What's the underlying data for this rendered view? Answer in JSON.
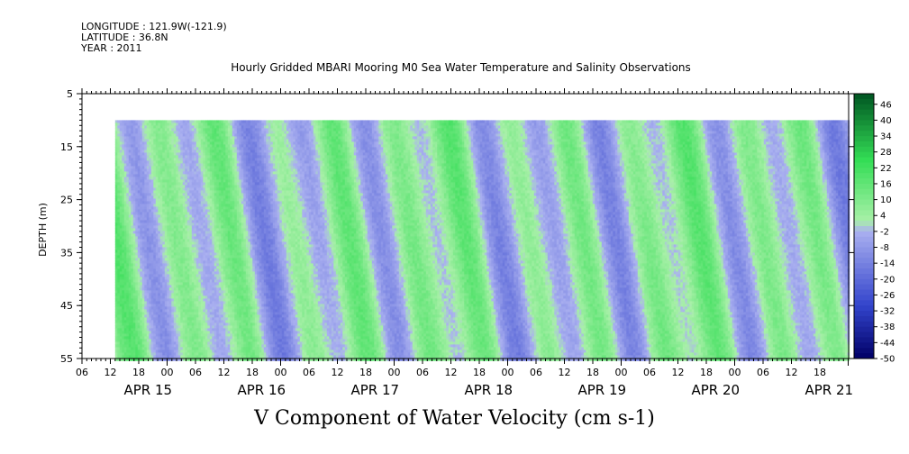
{
  "header": {
    "longitude": "LONGITUDE : 121.9W(-121.9)",
    "latitude": "LATITUDE : 36.8N",
    "year": "YEAR : 2011"
  },
  "chart_data": {
    "type": "heatmap",
    "title": "Hourly Gridded MBARI Mooring M0 Sea Water Temperature and Salinity Observations",
    "xlabel": "V Component of Water Velocity (cm s-1)",
    "ylabel": "DEPTH (m)",
    "y_ticks": [
      5,
      15,
      25,
      35,
      45,
      55
    ],
    "ylim": [
      5,
      55
    ],
    "y_reversed": true,
    "data_depth_range": [
      10,
      55
    ],
    "x_hour_ticks": [
      "06",
      "12",
      "18",
      "00",
      "06",
      "12",
      "18",
      "00",
      "06",
      "12",
      "18",
      "00",
      "06",
      "12",
      "18",
      "00",
      "06",
      "12",
      "18",
      "00",
      "06",
      "12",
      "18",
      "00",
      "06",
      "12",
      "18"
    ],
    "x_day_labels": [
      "APR 15",
      "APR 16",
      "APR 17",
      "APR 18",
      "APR 19",
      "APR 20",
      "APR 21"
    ],
    "x_start": "APR 15 06:00",
    "x_end": "APR 21 22:00",
    "data_x_start": "APR 15 13:00",
    "colorbar": {
      "levels": [
        "46",
        "40",
        "34",
        "28",
        "22",
        "16",
        "10",
        "4",
        "-2",
        "-8",
        "-14",
        "-20",
        "-26",
        "-32",
        "-38",
        "-44",
        "-50"
      ],
      "range": [
        -50,
        50
      ],
      "colors": {
        "negative_strong": "#000066",
        "negative_mid": "#3344cc",
        "negative_weak": "#aab0f0",
        "positive_weak": "#a8f0a8",
        "positive_mid": "#33dd55",
        "positive_strong": "#005522"
      }
    },
    "grid": false
  }
}
